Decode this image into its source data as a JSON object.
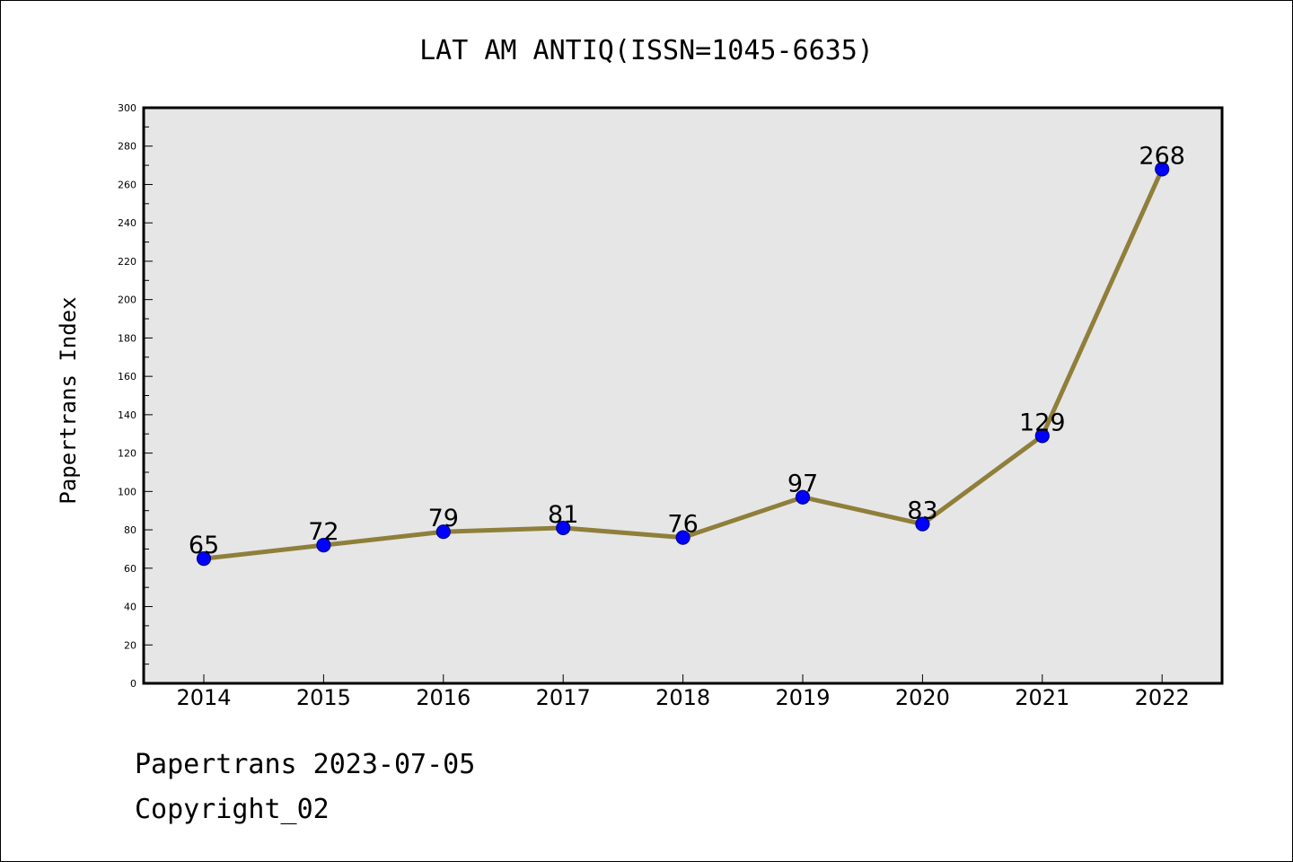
{
  "footer": {
    "line1": "Papertrans 2023-07-05",
    "line2": "Copyright_02"
  },
  "colors": {
    "plot_bg": "#e6e6e6",
    "line": "#8f7f3a",
    "marker": "#0000ff",
    "marker_edge": "#00008b"
  },
  "chart_data": {
    "type": "line",
    "title": "LAT AM ANTIQ(ISSN=1045-6635)",
    "xlabel": "",
    "ylabel": "Papertrans Index",
    "categories": [
      "2014",
      "2015",
      "2016",
      "2017",
      "2018",
      "2019",
      "2020",
      "2021",
      "2022"
    ],
    "series": [
      {
        "values": [
          65,
          72,
          79,
          81,
          76,
          97,
          83,
          129,
          268
        ]
      }
    ],
    "data_labels": [
      "65",
      "72",
      "79",
      "81",
      "76",
      "97",
      "83",
      "129",
      "268"
    ],
    "ylim": [
      0,
      300
    ],
    "yticks": [
      "0",
      "20",
      "40",
      "60",
      "80",
      "100",
      "120",
      "140",
      "160",
      "180",
      "200",
      "220",
      "240",
      "260",
      "280",
      "300"
    ],
    "grid": false,
    "legend": "none"
  }
}
